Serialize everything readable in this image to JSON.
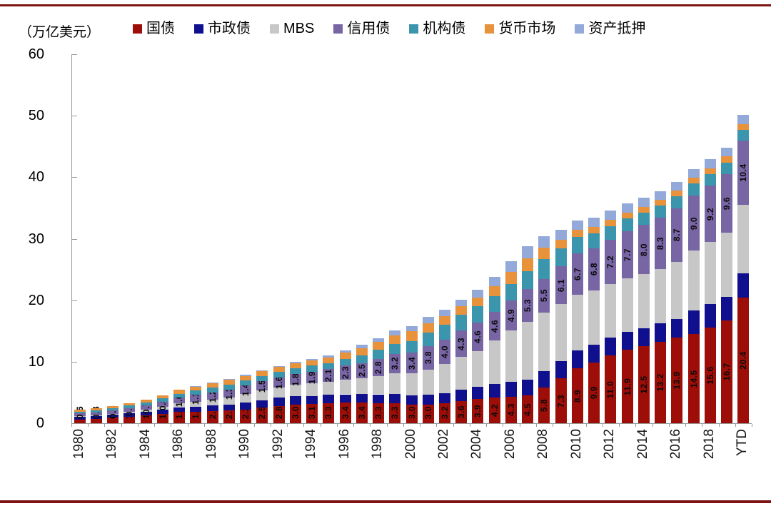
{
  "page": {
    "top_rule_color": "#7e1313",
    "bottom_rule_color": "#7e1313",
    "background": "#ffffff",
    "axis_color": "#9a9a9a"
  },
  "chart_data": {
    "type": "bar",
    "stacked": true,
    "unit_label": "（万亿美元）",
    "title": "",
    "xlabel": "",
    "ylabel": "",
    "ylim": [
      0,
      60
    ],
    "y_ticks": [
      0,
      10,
      20,
      30,
      40,
      50,
      60
    ],
    "grid": false,
    "legend_position": "top",
    "label_rotation": "vertical-bottom-up",
    "categories": [
      "1980",
      "1981",
      "1982",
      "1983",
      "1984",
      "1985",
      "1986",
      "1987",
      "1988",
      "1989",
      "1990",
      "1991",
      "1992",
      "1993",
      "1994",
      "1995",
      "1996",
      "1997",
      "1998",
      "1999",
      "2000",
      "2001",
      "2002",
      "2003",
      "2004",
      "2005",
      "2006",
      "2007",
      "2008",
      "2009",
      "2010",
      "2011",
      "2012",
      "2013",
      "2014",
      "2015",
      "2016",
      "2017",
      "2018",
      "2019",
      "YTD"
    ],
    "x_tick_labels": [
      "1980",
      "1982",
      "1984",
      "1986",
      "1988",
      "1990",
      "1992",
      "1994",
      "1996",
      "1998",
      "2000",
      "2002",
      "2004",
      "2006",
      "2008",
      "2010",
      "2012",
      "2014",
      "2016",
      "2018",
      "YTD"
    ],
    "series": [
      {
        "name": "国债",
        "color": "#9e0e08",
        "show_labels": true,
        "values": [
          0.6,
          0.7,
          0.9,
          1.1,
          1.3,
          1.5,
          1.8,
          1.9,
          2.0,
          2.1,
          2.2,
          2.5,
          2.8,
          3.0,
          3.1,
          3.3,
          3.4,
          3.4,
          3.3,
          3.3,
          3.0,
          3.0,
          3.2,
          3.6,
          3.9,
          4.2,
          4.3,
          4.5,
          5.8,
          7.3,
          8.9,
          9.9,
          11.0,
          11.9,
          12.5,
          13.2,
          13.9,
          14.5,
          15.6,
          16.7,
          20.4
        ]
      },
      {
        "name": "市政债",
        "color": "#10108f",
        "show_labels": false,
        "values": [
          0.4,
          0.45,
          0.48,
          0.52,
          0.58,
          0.74,
          0.75,
          0.8,
          0.88,
          0.94,
          1.18,
          1.27,
          1.33,
          1.38,
          1.35,
          1.3,
          1.3,
          1.33,
          1.4,
          1.46,
          1.48,
          1.6,
          1.73,
          1.87,
          2.0,
          2.19,
          2.4,
          2.62,
          2.68,
          2.8,
          2.91,
          2.92,
          2.94,
          2.93,
          2.94,
          3.01,
          3.07,
          3.85,
          3.83,
          3.85,
          3.92
        ]
      },
      {
        "name": "MBS",
        "color": "#c7c7c7",
        "show_labels": false,
        "values": [
          0.11,
          0.14,
          0.18,
          0.25,
          0.33,
          0.45,
          0.66,
          0.83,
          0.96,
          1.13,
          1.33,
          1.53,
          1.7,
          1.85,
          2.0,
          2.15,
          2.35,
          2.55,
          2.95,
          3.35,
          3.6,
          4.15,
          4.7,
          5.3,
          5.85,
          7.1,
          8.4,
          9.4,
          9.5,
          9.3,
          9.1,
          8.8,
          8.7,
          8.7,
          8.8,
          8.9,
          9.3,
          9.7,
          10.0,
          10.4,
          11.2
        ]
      },
      {
        "name": "信用债",
        "color": "#7765a4",
        "show_labels": true,
        "values": [
          0.5,
          0.5,
          0.5,
          0.6,
          0.7,
          0.8,
          1.0,
          1.1,
          1.2,
          1.3,
          1.4,
          1.5,
          1.6,
          1.8,
          1.9,
          2.1,
          2.3,
          2.5,
          2.8,
          3.2,
          3.4,
          3.8,
          4.0,
          4.3,
          4.6,
          4.6,
          4.9,
          5.3,
          5.5,
          6.1,
          6.7,
          6.8,
          7.2,
          7.7,
          8.0,
          8.3,
          8.7,
          9.0,
          9.2,
          9.6,
          10.4
        ]
      },
      {
        "name": "机构债",
        "color": "#3a95ad",
        "show_labels": false,
        "values": [
          0.3,
          0.33,
          0.38,
          0.41,
          0.46,
          0.53,
          0.6,
          0.67,
          0.72,
          0.78,
          0.8,
          0.85,
          0.9,
          0.95,
          1.0,
          0.95,
          1.1,
          1.3,
          1.45,
          1.6,
          1.9,
          2.15,
          2.35,
          2.6,
          2.7,
          2.6,
          2.65,
          2.9,
          3.2,
          2.95,
          2.7,
          2.45,
          2.2,
          2.05,
          2.0,
          1.95,
          1.95,
          1.9,
          1.85,
          1.8,
          1.75
        ]
      },
      {
        "name": "货币市场",
        "color": "#e8923c",
        "show_labels": false,
        "values": [
          0.3,
          0.35,
          0.4,
          0.42,
          0.48,
          0.55,
          0.6,
          0.7,
          0.8,
          0.85,
          0.8,
          0.8,
          0.8,
          0.8,
          0.85,
          0.85,
          1.0,
          1.15,
          1.3,
          1.4,
          1.6,
          1.6,
          1.4,
          1.35,
          1.4,
          1.65,
          1.95,
          2.1,
          1.9,
          1.35,
          1.1,
          1.05,
          1.0,
          0.98,
          0.95,
          0.95,
          0.9,
          0.95,
          1.0,
          1.0,
          1.0
        ]
      },
      {
        "name": "资产抵押",
        "color": "#92a9d9",
        "show_labels": false,
        "values": [
          0.0,
          0.0,
          0.0,
          0.0,
          0.0,
          0.01,
          0.02,
          0.04,
          0.07,
          0.1,
          0.14,
          0.17,
          0.2,
          0.25,
          0.3,
          0.36,
          0.44,
          0.54,
          0.65,
          0.75,
          0.85,
          0.95,
          1.05,
          1.1,
          1.2,
          1.4,
          1.7,
          1.95,
          1.85,
          1.7,
          1.55,
          1.5,
          1.5,
          1.45,
          1.45,
          1.4,
          1.4,
          1.45,
          1.5,
          1.5,
          1.5
        ]
      }
    ]
  }
}
